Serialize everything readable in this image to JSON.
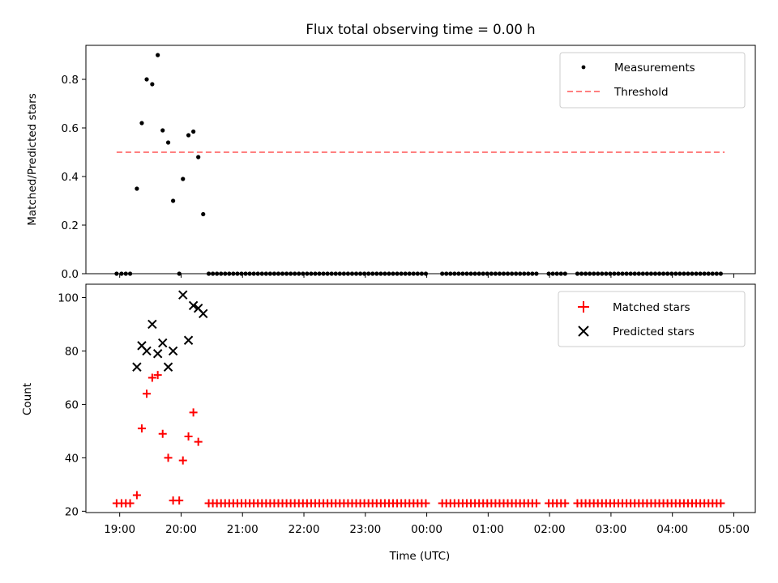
{
  "chart_data": [
    {
      "type": "scatter",
      "title": "Flux total observing time = 0.00 h",
      "xlabel": "",
      "ylabel": "Matched/Predicted stars",
      "ylim": [
        0,
        0.94
      ],
      "yticks": [
        0.0,
        0.2,
        0.4,
        0.6,
        0.8
      ],
      "ytick_labels": [
        "0.0",
        "0.2",
        "0.4",
        "0.6",
        "0.8"
      ],
      "legend": {
        "position": "top-right",
        "entries": [
          "Measurements",
          "Threshold"
        ]
      },
      "series": [
        {
          "name": "Measurements",
          "marker": "dot",
          "color": "#000000",
          "x": [
            18.95,
            19.03,
            19.1,
            19.17,
            19.28,
            19.36,
            19.44,
            19.53,
            19.62,
            19.7,
            19.79,
            19.87,
            19.97,
            20.03,
            20.12,
            20.2,
            20.28,
            20.36
          ],
          "y": [
            0,
            0,
            0,
            0,
            0.35,
            0.62,
            0.8,
            0.78,
            0.9,
            0.59,
            0.54,
            0.3,
            0,
            0.39,
            0.57,
            0.585,
            0.48,
            0.245
          ]
        },
        {
          "name": "Threshold",
          "style": "dashed",
          "color": "#ff8080",
          "x": [
            18.95,
            28.85
          ],
          "y": [
            0.5,
            0.5
          ]
        }
      ]
    },
    {
      "type": "scatter",
      "title": "",
      "xlabel": "Time (UTC)",
      "ylabel": "Count",
      "ylim": [
        19.5,
        105
      ],
      "yticks": [
        20,
        40,
        60,
        80,
        100
      ],
      "ytick_labels": [
        "20",
        "40",
        "60",
        "80",
        "100"
      ],
      "xlim": [
        18.45,
        29.35
      ],
      "xticks": [
        19,
        20,
        21,
        22,
        23,
        24,
        25,
        26,
        27,
        28,
        29
      ],
      "xtick_labels": [
        "19:00",
        "20:00",
        "21:00",
        "22:00",
        "23:00",
        "00:00",
        "01:00",
        "02:00",
        "03:00",
        "04:00",
        "05:00"
      ],
      "legend": {
        "position": "top-right",
        "entries": [
          "Matched stars",
          "Predicted stars"
        ]
      },
      "series": [
        {
          "name": "Matched stars",
          "marker": "plus",
          "color": "#ff0000",
          "x": [
            18.95,
            19.03,
            19.1,
            19.17,
            19.28,
            19.36,
            19.44,
            19.53,
            19.62,
            19.7,
            19.79,
            19.87,
            19.97,
            20.03,
            20.12,
            20.2,
            20.28
          ],
          "y": [
            23,
            23,
            23,
            23,
            26,
            51,
            64,
            70,
            71,
            49,
            40,
            24,
            24,
            39,
            48,
            57,
            46
          ]
        },
        {
          "name": "Predicted stars",
          "marker": "x",
          "color": "#000000",
          "x": [
            19.28,
            19.36,
            19.44,
            19.53,
            19.62,
            19.7,
            19.79,
            19.87,
            20.03,
            20.12,
            20.2,
            20.28,
            20.36
          ],
          "y": [
            74,
            82,
            80,
            90,
            79,
            83,
            74,
            80,
            101,
            84,
            97,
            96,
            94
          ]
        }
      ]
    }
  ]
}
